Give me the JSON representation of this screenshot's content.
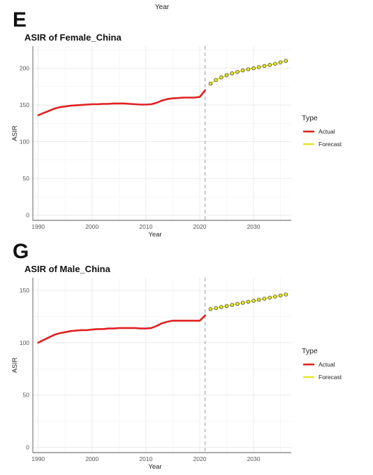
{
  "top_label": "Year",
  "chart_data": [
    {
      "panel": "E",
      "type": "line",
      "title": "ASIR of Female_China",
      "xlabel": "Year",
      "ylabel": "ASIR",
      "xlim": [
        1989,
        2037
      ],
      "ylim": [
        -7,
        230
      ],
      "x_ticks": [
        1990,
        2000,
        2010,
        2020,
        2030
      ],
      "y_ticks": [
        0,
        50,
        100,
        150,
        200
      ],
      "cutoff_year": 2021,
      "grid": true,
      "legend": {
        "title": "Type",
        "position": "right",
        "entries": [
          "Actual",
          "Forecast"
        ]
      },
      "series": [
        {
          "name": "Actual",
          "color": "#e02020",
          "style": "line",
          "x": [
            1990,
            1991,
            1992,
            1993,
            1994,
            1995,
            1996,
            1997,
            1998,
            1999,
            2000,
            2001,
            2002,
            2003,
            2004,
            2005,
            2006,
            2007,
            2008,
            2009,
            2010,
            2011,
            2012,
            2013,
            2014,
            2015,
            2016,
            2017,
            2018,
            2019,
            2020,
            2021
          ],
          "y": [
            136,
            139,
            142,
            145,
            147,
            148,
            149,
            149.5,
            150,
            150.5,
            151,
            151,
            151.5,
            151.5,
            152,
            152,
            152,
            151.5,
            151,
            150.5,
            150.5,
            151,
            153,
            156,
            158,
            159,
            159.5,
            160,
            160,
            160,
            161,
            170
          ]
        },
        {
          "name": "Forecast",
          "color": "#e6e62a",
          "style": "points",
          "x": [
            2022,
            2023,
            2024,
            2025,
            2026,
            2027,
            2028,
            2029,
            2030,
            2031,
            2032,
            2033,
            2034,
            2035,
            2036
          ],
          "y": [
            179,
            184,
            187.5,
            190.5,
            193,
            195,
            197,
            198.5,
            200,
            201.5,
            203,
            204.5,
            206,
            208,
            210
          ]
        }
      ]
    },
    {
      "panel": "G",
      "type": "line",
      "title": "ASIR of Male_China",
      "xlabel": "Year",
      "ylabel": "ASIR",
      "xlim": [
        1989,
        2037
      ],
      "ylim": [
        -5,
        162
      ],
      "x_ticks": [
        1990,
        2000,
        2010,
        2020,
        2030
      ],
      "y_ticks": [
        0,
        50,
        100,
        150
      ],
      "cutoff_year": 2021,
      "grid": true,
      "legend": {
        "title": "Type",
        "position": "right",
        "entries": [
          "Actual",
          "Forecast"
        ]
      },
      "series": [
        {
          "name": "Actual",
          "color": "#e02020",
          "style": "line",
          "x": [
            1990,
            1991,
            1992,
            1993,
            1994,
            1995,
            1996,
            1997,
            1998,
            1999,
            2000,
            2001,
            2002,
            2003,
            2004,
            2005,
            2006,
            2007,
            2008,
            2009,
            2010,
            2011,
            2012,
            2013,
            2014,
            2015,
            2016,
            2017,
            2018,
            2019,
            2020,
            2021
          ],
          "y": [
            100,
            102.5,
            105,
            107.5,
            109,
            110,
            111,
            111.5,
            112,
            112,
            112.5,
            113,
            113,
            113.5,
            113.5,
            114,
            114,
            114,
            114,
            113.5,
            113.5,
            114,
            116,
            118.5,
            120,
            121,
            121,
            121,
            121,
            121,
            121,
            126
          ]
        },
        {
          "name": "Forecast",
          "color": "#e6e62a",
          "style": "points",
          "x": [
            2022,
            2023,
            2024,
            2025,
            2026,
            2027,
            2028,
            2029,
            2030,
            2031,
            2032,
            2033,
            2034,
            2035,
            2036
          ],
          "y": [
            132,
            133,
            134,
            135,
            136,
            137,
            138,
            139,
            140,
            141,
            142,
            143,
            144,
            145,
            146
          ]
        }
      ]
    }
  ]
}
